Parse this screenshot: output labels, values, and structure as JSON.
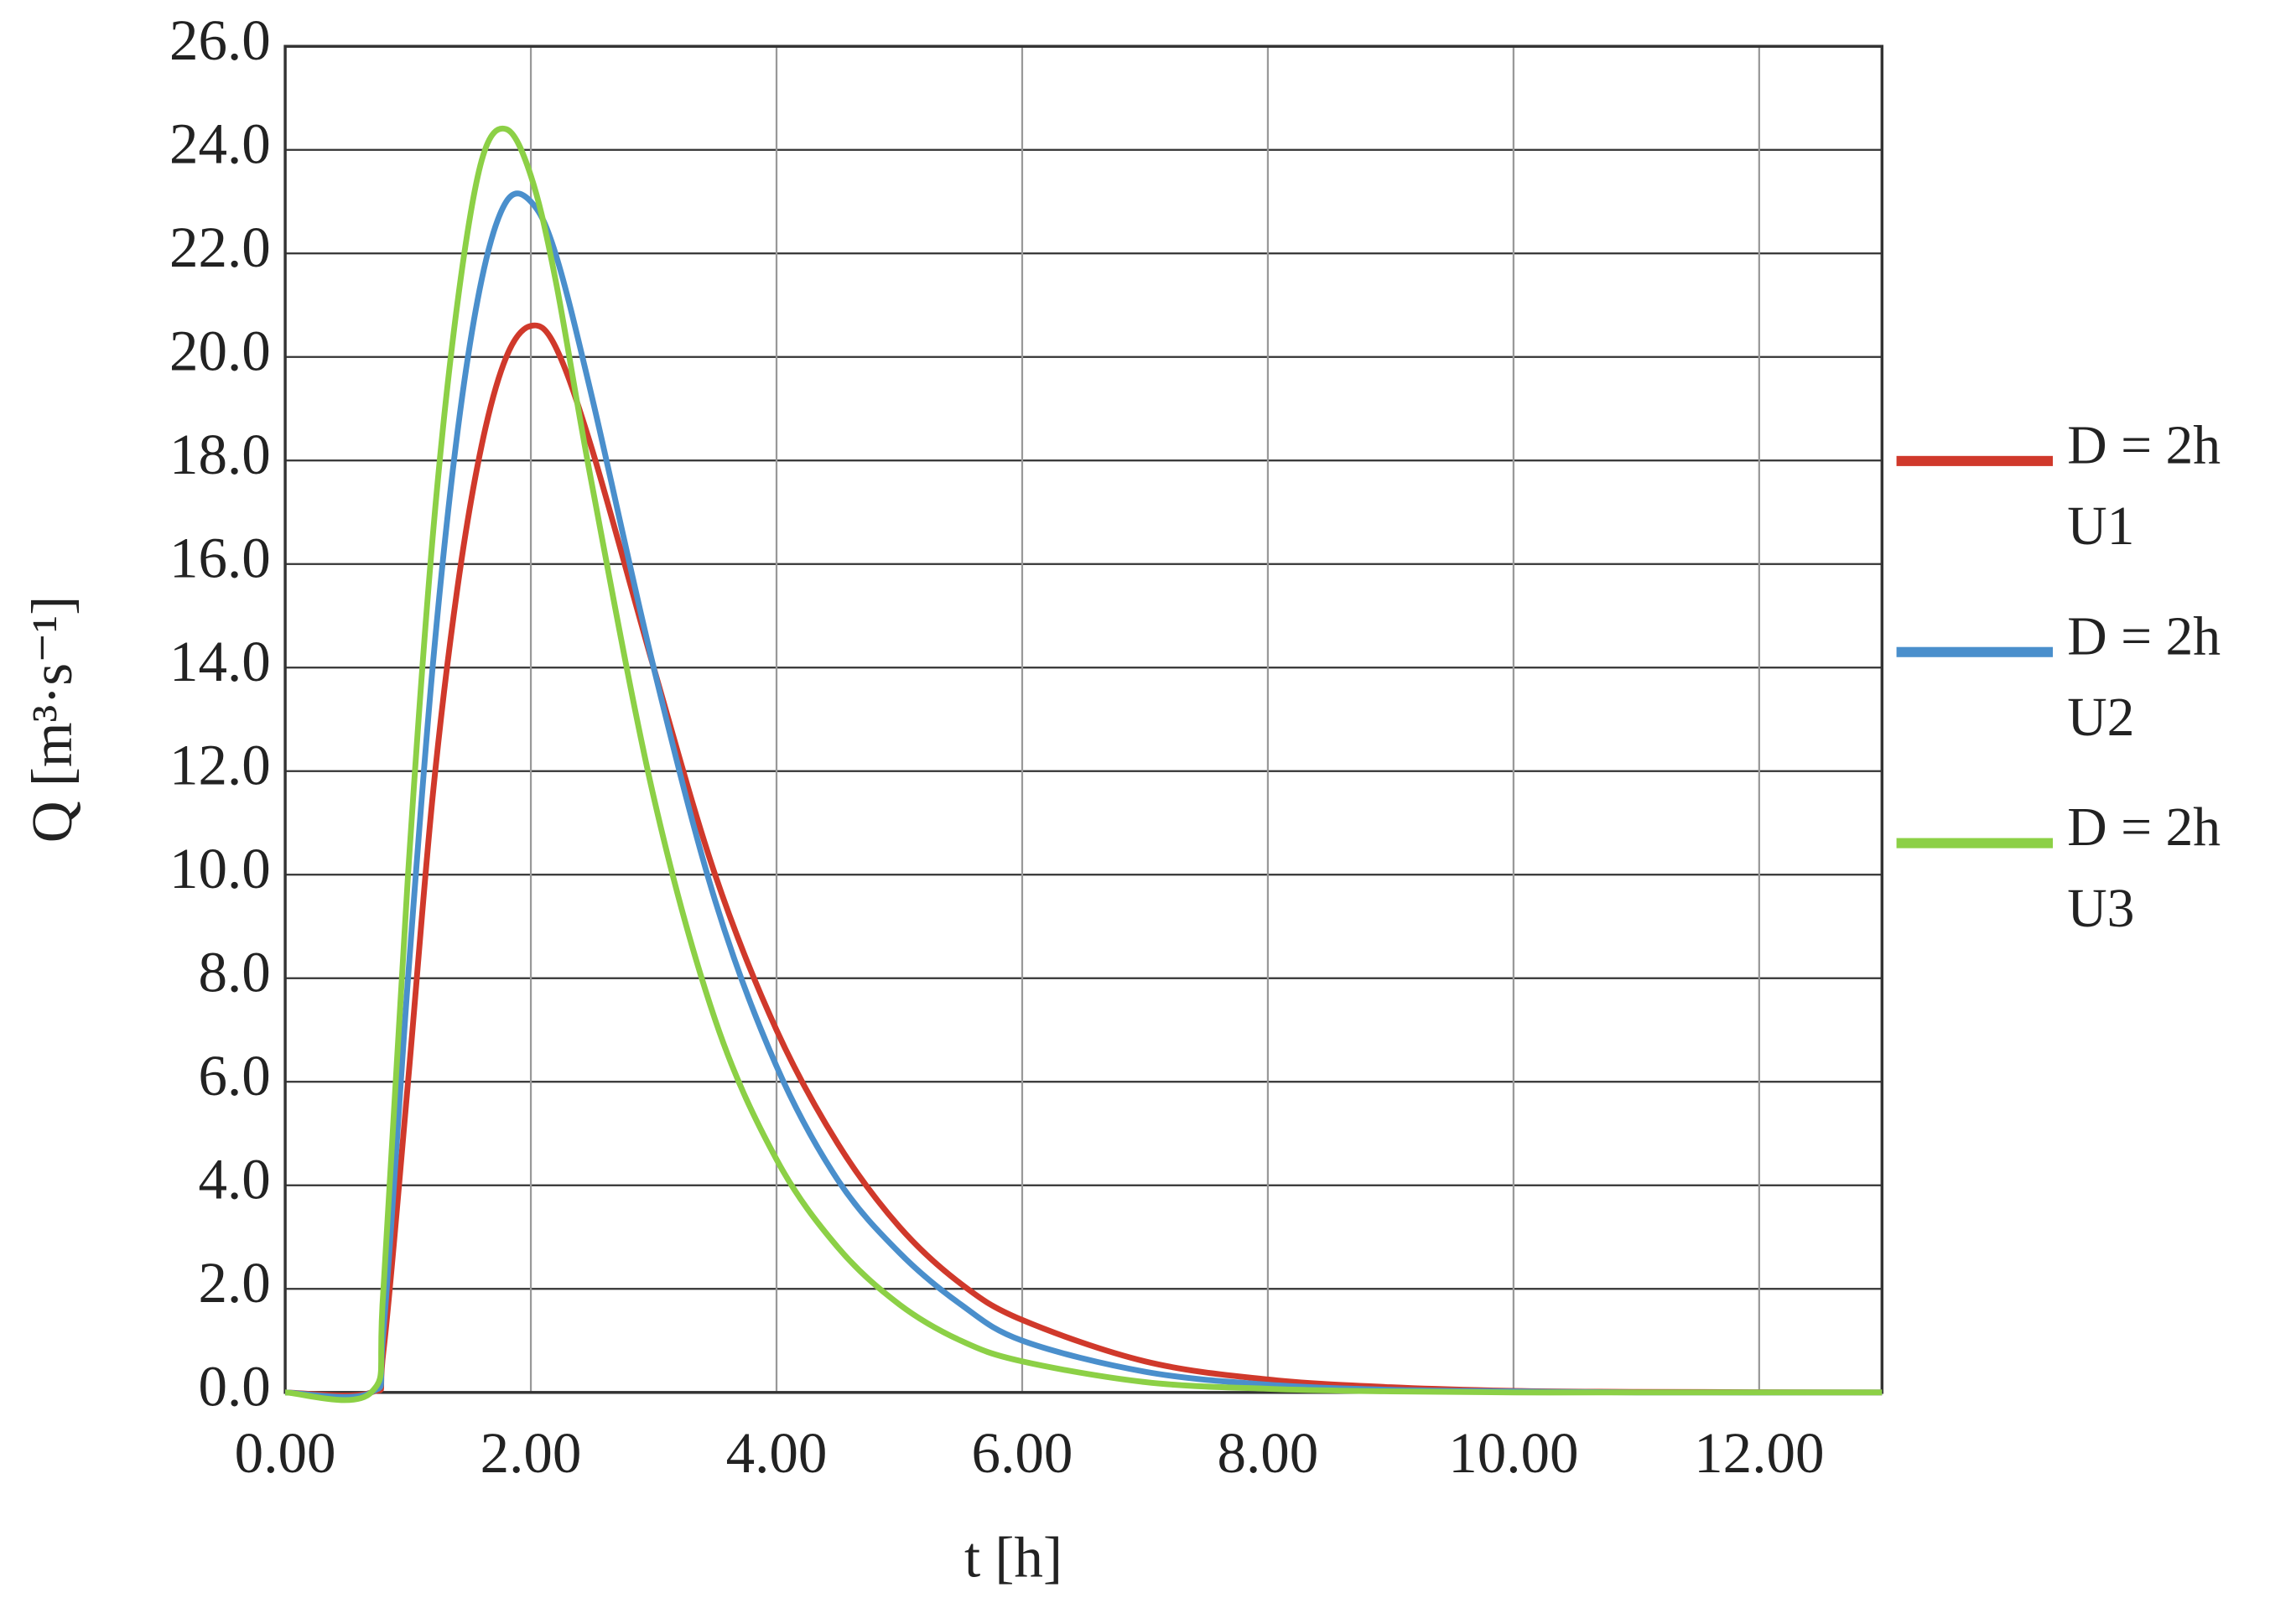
{
  "chart_data": {
    "type": "line",
    "x_label": "t [h]",
    "y_label": "Q [m³·s⁻¹]",
    "x": [
      0,
      0.7,
      0.8,
      1.0,
      1.2,
      1.4,
      1.6,
      1.8,
      2.0,
      2.2,
      2.5,
      3.0,
      3.5,
      4.0,
      4.5,
      5.0,
      5.5,
      6.0,
      7.0,
      8.0,
      9.0,
      10.0,
      11.0,
      13.0
    ],
    "series": [
      {
        "name": "D = 2h U1",
        "color": "#d0392b",
        "values": [
          0,
          0,
          0.8,
          6.0,
          11.5,
          15.5,
          18.3,
          20.0,
          20.6,
          20.2,
          18.2,
          14.0,
          10.0,
          7.0,
          4.8,
          3.2,
          2.1,
          1.4,
          0.6,
          0.25,
          0.1,
          0.03,
          0.01,
          0
        ]
      },
      {
        "name": "D = 2h U2",
        "color": "#4a8fcc",
        "values": [
          0,
          0,
          1.2,
          8.0,
          14.0,
          18.5,
          21.5,
          23.0,
          23.0,
          22.0,
          19.2,
          14.0,
          9.5,
          6.3,
          4.1,
          2.7,
          1.7,
          1.0,
          0.4,
          0.15,
          0.05,
          0.02,
          0,
          0
        ]
      },
      {
        "name": "D = 2h U3",
        "color": "#8cd046",
        "values": [
          0,
          0,
          2.0,
          10.0,
          16.5,
          21.0,
          23.8,
          24.4,
          23.5,
          21.5,
          17.5,
          11.5,
          7.2,
          4.5,
          2.8,
          1.7,
          1.0,
          0.6,
          0.2,
          0.07,
          0.02,
          0,
          0,
          0
        ]
      }
    ],
    "xlim": [
      0,
      13
    ],
    "xticks": [
      {
        "value": 0,
        "label": "0.00"
      },
      {
        "value": 2,
        "label": "2.00"
      },
      {
        "value": 4,
        "label": "4.00"
      },
      {
        "value": 6,
        "label": "6.00"
      },
      {
        "value": 8,
        "label": "8.00"
      },
      {
        "value": 10,
        "label": "10.00"
      },
      {
        "value": 12,
        "label": "12.00"
      }
    ],
    "ylim": [
      0,
      26
    ],
    "yticks": [
      {
        "value": 0,
        "label": "0.0"
      },
      {
        "value": 2,
        "label": "2.0"
      },
      {
        "value": 4,
        "label": "4.0"
      },
      {
        "value": 6,
        "label": "6.0"
      },
      {
        "value": 8,
        "label": "8.0"
      },
      {
        "value": 10,
        "label": "10.0"
      },
      {
        "value": 12,
        "label": "12.0"
      },
      {
        "value": 14,
        "label": "14.0"
      },
      {
        "value": 16,
        "label": "16.0"
      },
      {
        "value": 18,
        "label": "18.0"
      },
      {
        "value": 20,
        "label": "20.0"
      },
      {
        "value": 22,
        "label": "22.0"
      },
      {
        "value": 24,
        "label": "24.0"
      },
      {
        "value": 26,
        "label": "26.0"
      }
    ],
    "grid": true,
    "legend": "right"
  }
}
